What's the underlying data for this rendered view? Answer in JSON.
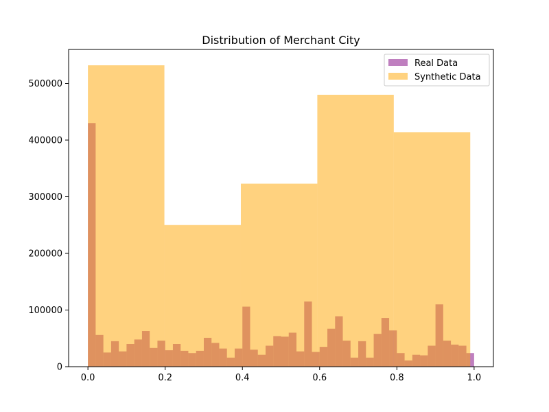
{
  "chart_data": {
    "type": "bar",
    "title": "Distribution of Merchant City",
    "xlabel": "",
    "ylabel": "",
    "xlim": [
      -0.05,
      1.05
    ],
    "ylim": [
      0,
      560000
    ],
    "xticks": [
      0.0,
      0.2,
      0.4,
      0.6,
      0.8,
      1.0
    ],
    "xtick_labels": [
      "0.0",
      "0.2",
      "0.4",
      "0.6",
      "0.8",
      "1.0"
    ],
    "yticks": [
      0,
      100000,
      200000,
      300000,
      400000,
      500000
    ],
    "ytick_labels": [
      "0",
      "100000",
      "200000",
      "300000",
      "400000",
      "500000"
    ],
    "grid": false,
    "legend_position": "top-right",
    "series": [
      {
        "name": "Real Data",
        "color": "#800080",
        "opacity": 0.5,
        "bin_start": 0.0,
        "bin_width": 0.02,
        "values": [
          430000,
          56000,
          25000,
          45000,
          27000,
          40000,
          48000,
          63000,
          33000,
          46000,
          29000,
          40000,
          28000,
          24000,
          28000,
          51000,
          42000,
          32000,
          16000,
          32000,
          106000,
          30000,
          21000,
          37000,
          54000,
          53000,
          60000,
          27000,
          115000,
          26000,
          35000,
          67000,
          89000,
          46000,
          16000,
          45000,
          16000,
          58000,
          86000,
          64000,
          24000,
          11000,
          21000,
          20000,
          37000,
          110000,
          46000,
          39000,
          37000,
          24000
        ]
      },
      {
        "name": "Synthetic Data",
        "color": "#FFA500",
        "opacity": 0.5,
        "bin_edges": [
          0.0,
          0.198,
          0.396,
          0.594,
          0.792,
          0.99
        ],
        "values": [
          532000,
          250000,
          323000,
          480000,
          414000
        ]
      }
    ]
  }
}
